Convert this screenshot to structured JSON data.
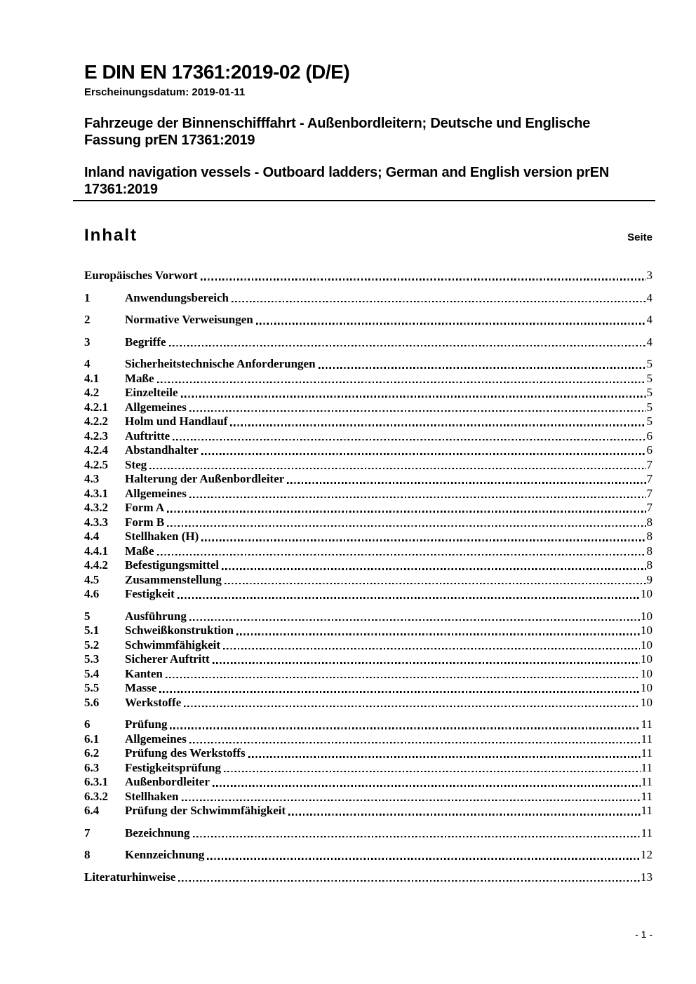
{
  "page": {
    "doc_number": "E DIN EN 17361:2019-02 (D/E)",
    "publication_date": "Erscheinungsdatum: 2019-01-11",
    "title_de": "Fahrzeuge der Binnenschifffahrt - Außenbordleitern; Deutsche und Englische\nFassung prEN 17361:2019",
    "title_en": "Inland navigation vessels - Outboard ladders; German and English version prEN\n17361:2019",
    "footer_page_number": "- 1 -"
  },
  "toc": {
    "heading": "Inhalt",
    "page_column_label": "Seite",
    "entries": [
      {
        "num": "",
        "title": "Europäisches Vorwort",
        "page": "3",
        "gap": false
      },
      {
        "num": "1",
        "title": "Anwendungsbereich",
        "page": "4",
        "gap": true
      },
      {
        "num": "2",
        "title": "Normative Verweisungen",
        "page": "4",
        "gap": true
      },
      {
        "num": "3",
        "title": "Begriffe",
        "page": "4",
        "gap": true
      },
      {
        "num": "4",
        "title": "Sicherheitstechnische Anforderungen",
        "page": "5",
        "gap": true
      },
      {
        "num": "4.1",
        "title": "Maße",
        "page": "5",
        "gap": false
      },
      {
        "num": "4.2",
        "title": "Einzelteile",
        "page": "5",
        "gap": false
      },
      {
        "num": "4.2.1",
        "title": "Allgemeines",
        "page": "5",
        "gap": false
      },
      {
        "num": "4.2.2",
        "title": "Holm und Handlauf",
        "page": "5",
        "gap": false
      },
      {
        "num": "4.2.3",
        "title": "Auftritte",
        "page": "6",
        "gap": false
      },
      {
        "num": "4.2.4",
        "title": "Abstandhalter",
        "page": "6",
        "gap": false
      },
      {
        "num": "4.2.5",
        "title": "Steg",
        "page": "7",
        "gap": false
      },
      {
        "num": "4.3",
        "title": "Halterung der Außenbordleiter",
        "page": "7",
        "gap": false
      },
      {
        "num": "4.3.1",
        "title": "Allgemeines",
        "page": "7",
        "gap": false
      },
      {
        "num": "4.3.2",
        "title": "Form A",
        "page": "7",
        "gap": false
      },
      {
        "num": "4.3.3",
        "title": "Form B",
        "page": "8",
        "gap": false
      },
      {
        "num": "4.4",
        "title": "Stellhaken (H)",
        "page": "8",
        "gap": false
      },
      {
        "num": "4.4.1",
        "title": "Maße",
        "page": "8",
        "gap": false
      },
      {
        "num": "4.4.2",
        "title": "Befestigungsmittel",
        "page": "8",
        "gap": false
      },
      {
        "num": "4.5",
        "title": "Zusammenstellung",
        "page": "9",
        "gap": false
      },
      {
        "num": "4.6",
        "title": "Festigkeit",
        "page": "10",
        "gap": false
      },
      {
        "num": "5",
        "title": "Ausführung",
        "page": "10",
        "gap": true
      },
      {
        "num": "5.1",
        "title": "Schweißkonstruktion",
        "page": "10",
        "gap": false
      },
      {
        "num": "5.2",
        "title": "Schwimmfähigkeit",
        "page": "10",
        "gap": false
      },
      {
        "num": "5.3",
        "title": "Sicherer Auftritt",
        "page": "10",
        "gap": false
      },
      {
        "num": "5.4",
        "title": "Kanten",
        "page": "10",
        "gap": false
      },
      {
        "num": "5.5",
        "title": "Masse",
        "page": "10",
        "gap": false
      },
      {
        "num": "5.6",
        "title": "Werkstoffe",
        "page": "10",
        "gap": false
      },
      {
        "num": "6",
        "title": "Prüfung",
        "page": "11",
        "gap": true
      },
      {
        "num": "6.1",
        "title": "Allgemeines",
        "page": "11",
        "gap": false
      },
      {
        "num": "6.2",
        "title": "Prüfung des Werkstoffs",
        "page": "11",
        "gap": false
      },
      {
        "num": "6.3",
        "title": "Festigkeitsprüfung",
        "page": "11",
        "gap": false
      },
      {
        "num": "6.3.1",
        "title": "Außenbordleiter",
        "page": "11",
        "gap": false
      },
      {
        "num": "6.3.2",
        "title": "Stellhaken",
        "page": "11",
        "gap": false
      },
      {
        "num": "6.4",
        "title": "Prüfung der Schwimmfähigkeit",
        "page": "11",
        "gap": false
      },
      {
        "num": "7",
        "title": "Bezeichnung",
        "page": "11",
        "gap": true
      },
      {
        "num": "8",
        "title": "Kennzeichnung",
        "page": "12",
        "gap": true
      },
      {
        "num": "",
        "title": "Literaturhinweise",
        "page": "13",
        "gap": true
      }
    ]
  }
}
